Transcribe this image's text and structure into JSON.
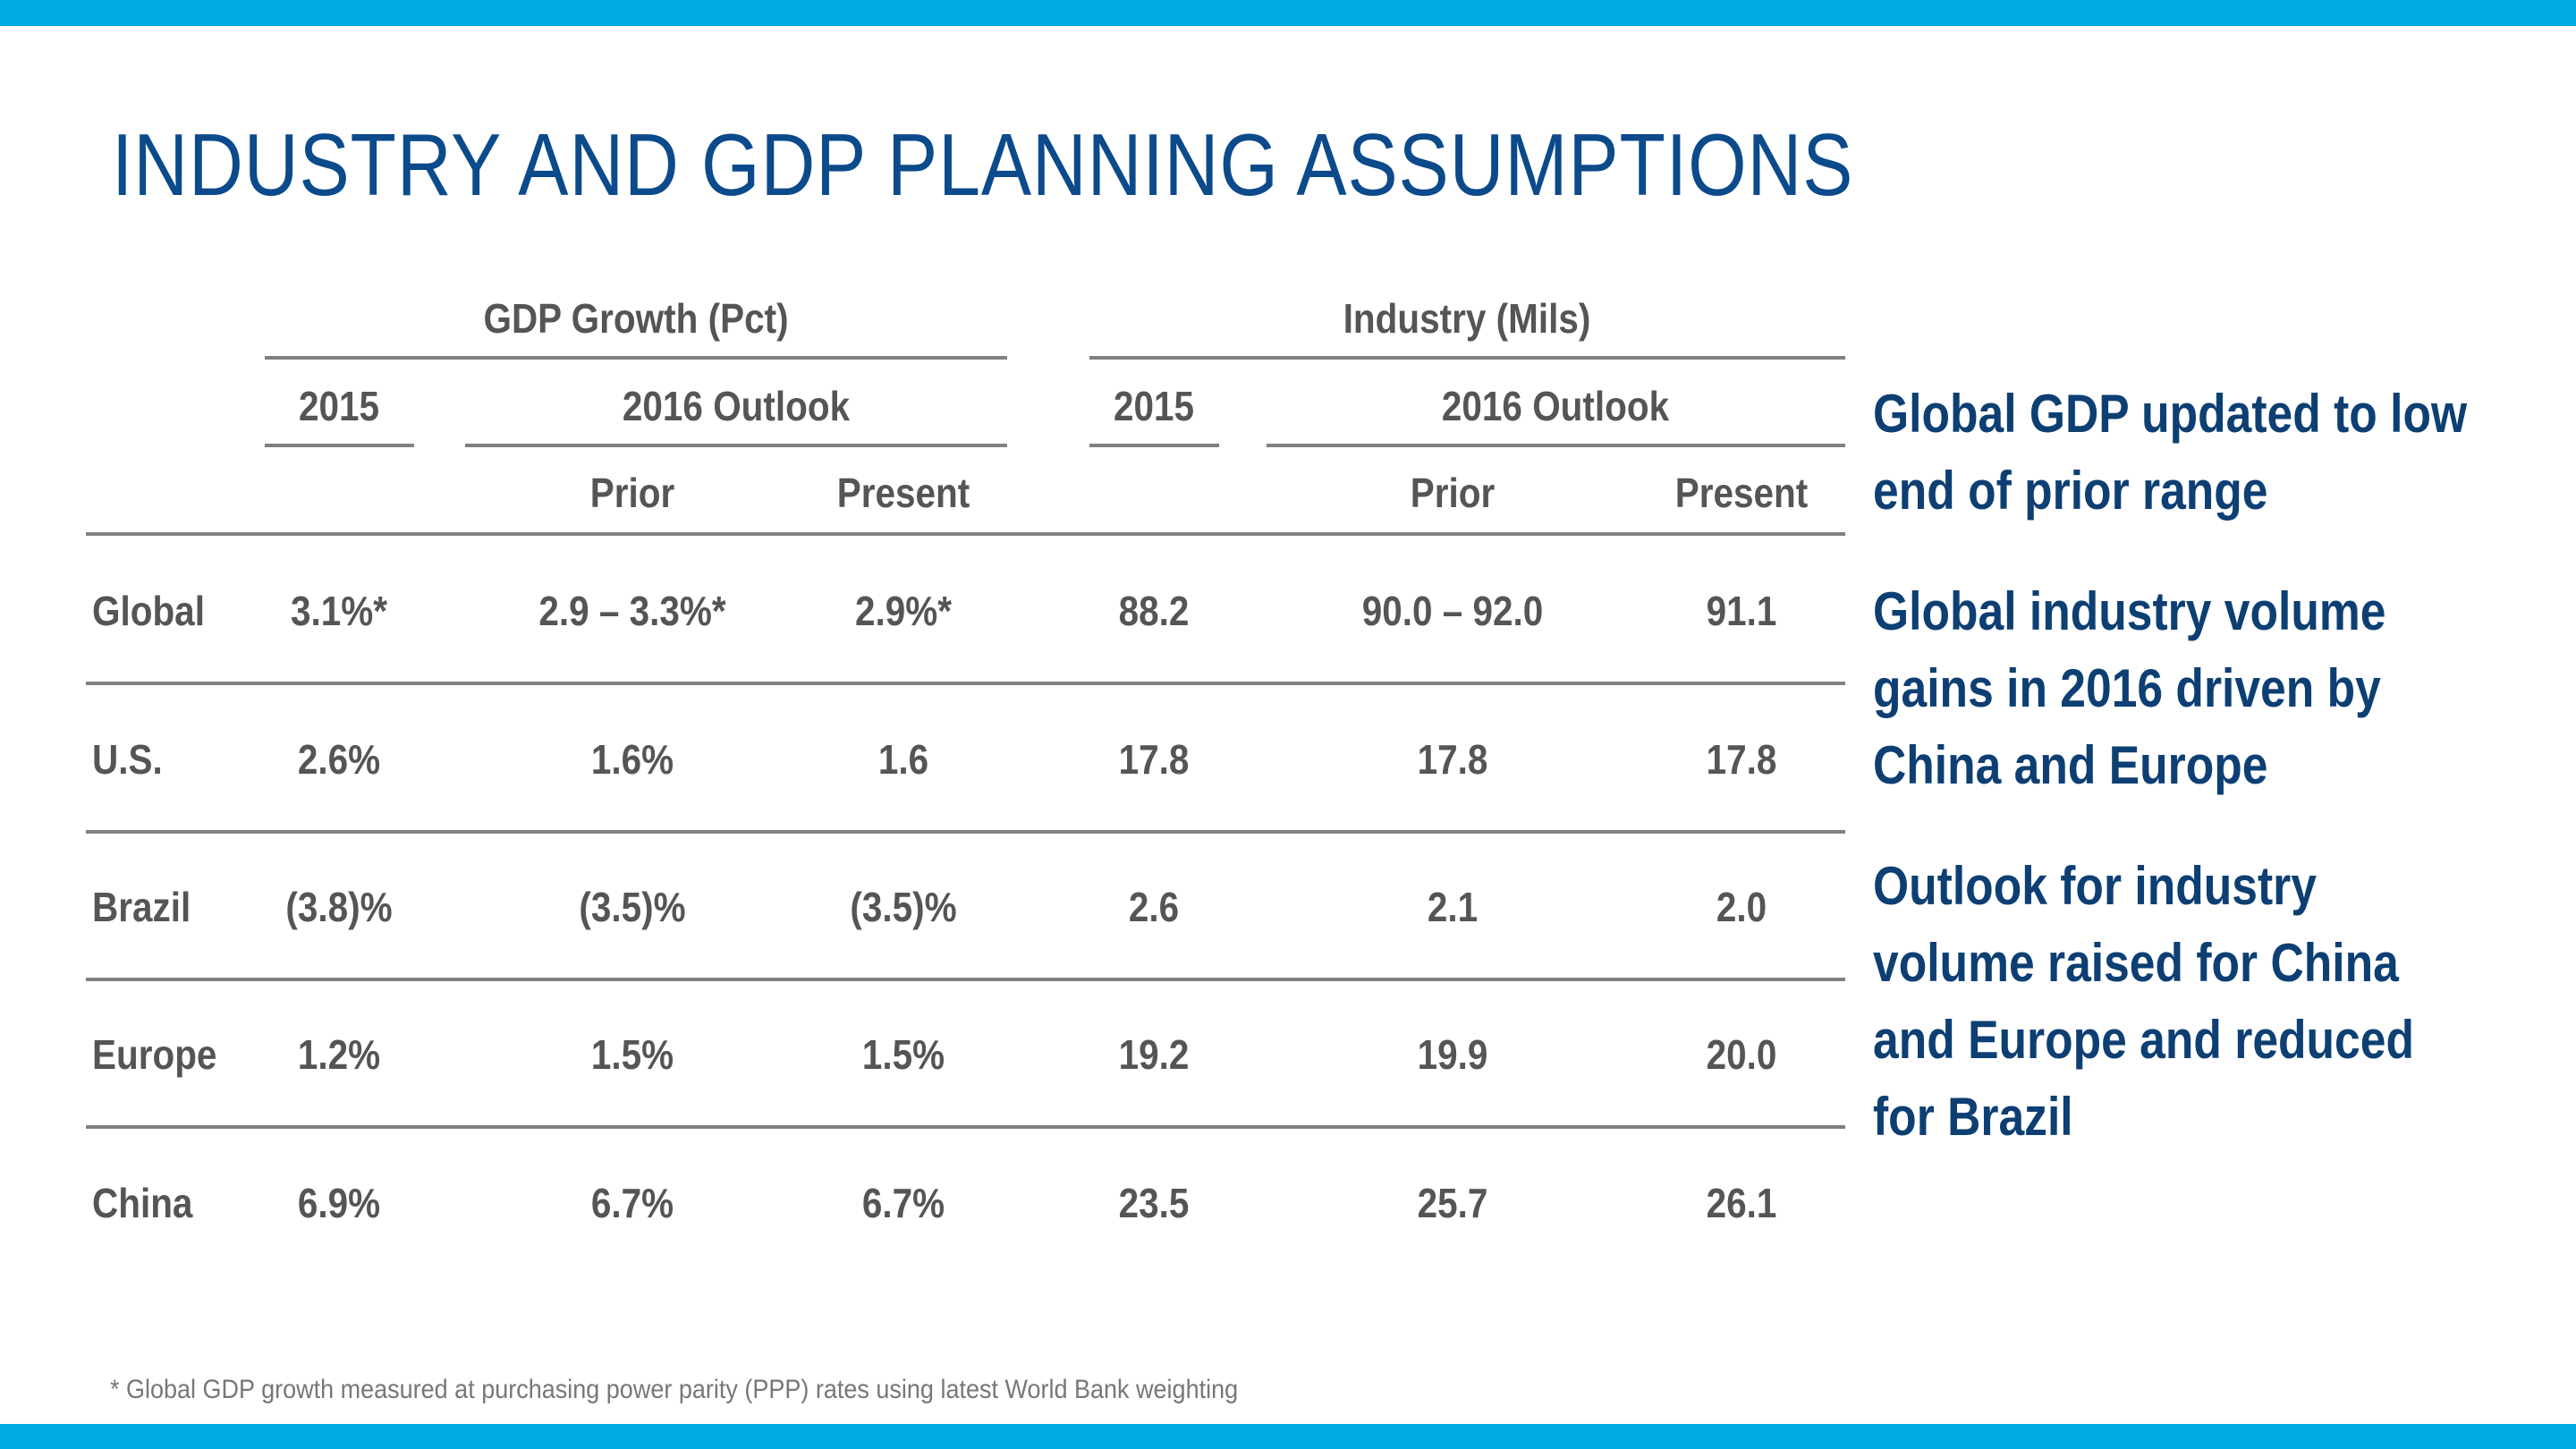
{
  "title": "INDUSTRY AND GDP PLANNING ASSUMPTIONS",
  "colors": {
    "accent_bar": "#00a9e0",
    "title": "#0b4a8b",
    "table_text": "#555555",
    "notes": "#0d3f73"
  },
  "table": {
    "group_headers": [
      "GDP Growth (Pct)",
      "Industry (Mils)"
    ],
    "sub_headers": [
      "2015",
      "2016 Outlook",
      "2015",
      "2016 Outlook"
    ],
    "col_headers": [
      "Prior",
      "Present",
      "Prior",
      "Present"
    ],
    "rows": [
      {
        "label": "Global",
        "cells": [
          "3.1%*",
          "2.9 – 3.3%*",
          "2.9%*",
          "88.2",
          "90.0 – 92.0",
          "91.1"
        ]
      },
      {
        "label": "U.S.",
        "cells": [
          "2.6%",
          "1.6%",
          "1.6",
          "17.8",
          "17.8",
          "17.8"
        ]
      },
      {
        "label": "Brazil",
        "cells": [
          "(3.8)%",
          "(3.5)%",
          "(3.5)%",
          "2.6",
          "2.1",
          "2.0"
        ]
      },
      {
        "label": "Europe",
        "cells": [
          "1.2%",
          "1.5%",
          "1.5%",
          "19.2",
          "19.9",
          "20.0"
        ]
      },
      {
        "label": "China",
        "cells": [
          "6.9%",
          "6.7%",
          "6.7%",
          "23.5",
          "25.7",
          "26.1"
        ]
      }
    ]
  },
  "notes": [
    [
      "Global GDP updated to low",
      "end of prior range"
    ],
    [
      "Global industry volume",
      "gains in 2016 driven by",
      "China and Europe"
    ],
    [
      "Outlook for industry",
      "volume raised for China",
      "and Europe and reduced",
      "for Brazil"
    ]
  ],
  "footnote": "*  Global GDP growth measured at purchasing power parity (PPP) rates using latest World Bank weighting"
}
